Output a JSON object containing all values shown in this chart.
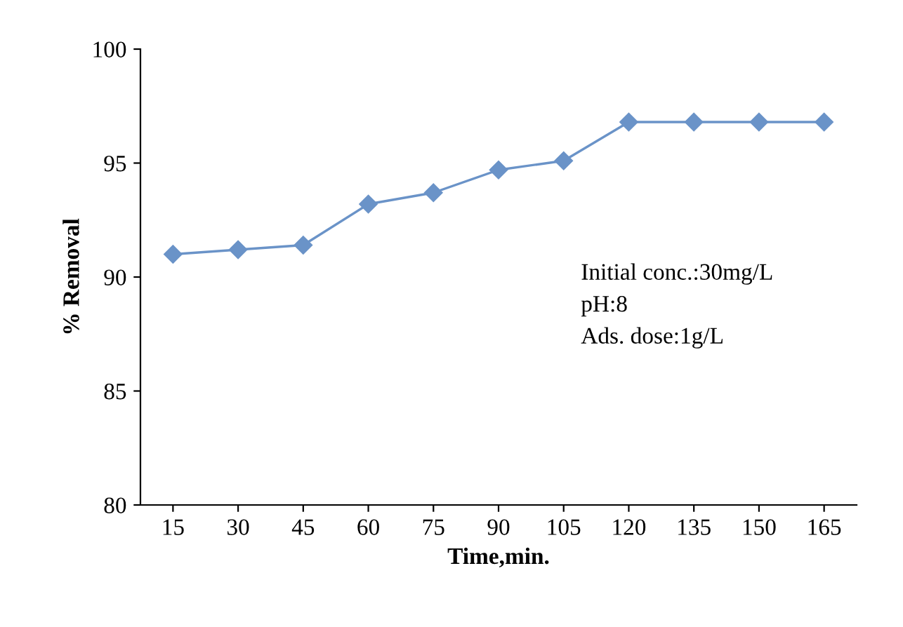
{
  "chart_data": {
    "type": "line",
    "xlabel": "Time,min.",
    "ylabel": "% Removal",
    "categories": [
      "15",
      "30",
      "45",
      "60",
      "75",
      "90",
      "105",
      "120",
      "135",
      "150",
      "165"
    ],
    "series": [
      {
        "color": "#6a93c8",
        "values": [
          91.0,
          91.2,
          91.4,
          93.2,
          93.7,
          94.7,
          95.1,
          96.8,
          96.8,
          96.8,
          96.8
        ]
      }
    ],
    "ylim": [
      80,
      100
    ],
    "yticks": [
      80,
      85,
      90,
      95,
      100
    ],
    "grid": false,
    "legend": false,
    "marker": "diamond",
    "line_style": "solid",
    "annotations": [
      "Initial conc.:30mg/L",
      "pH:8",
      "Ads. dose:1g/L"
    ]
  }
}
